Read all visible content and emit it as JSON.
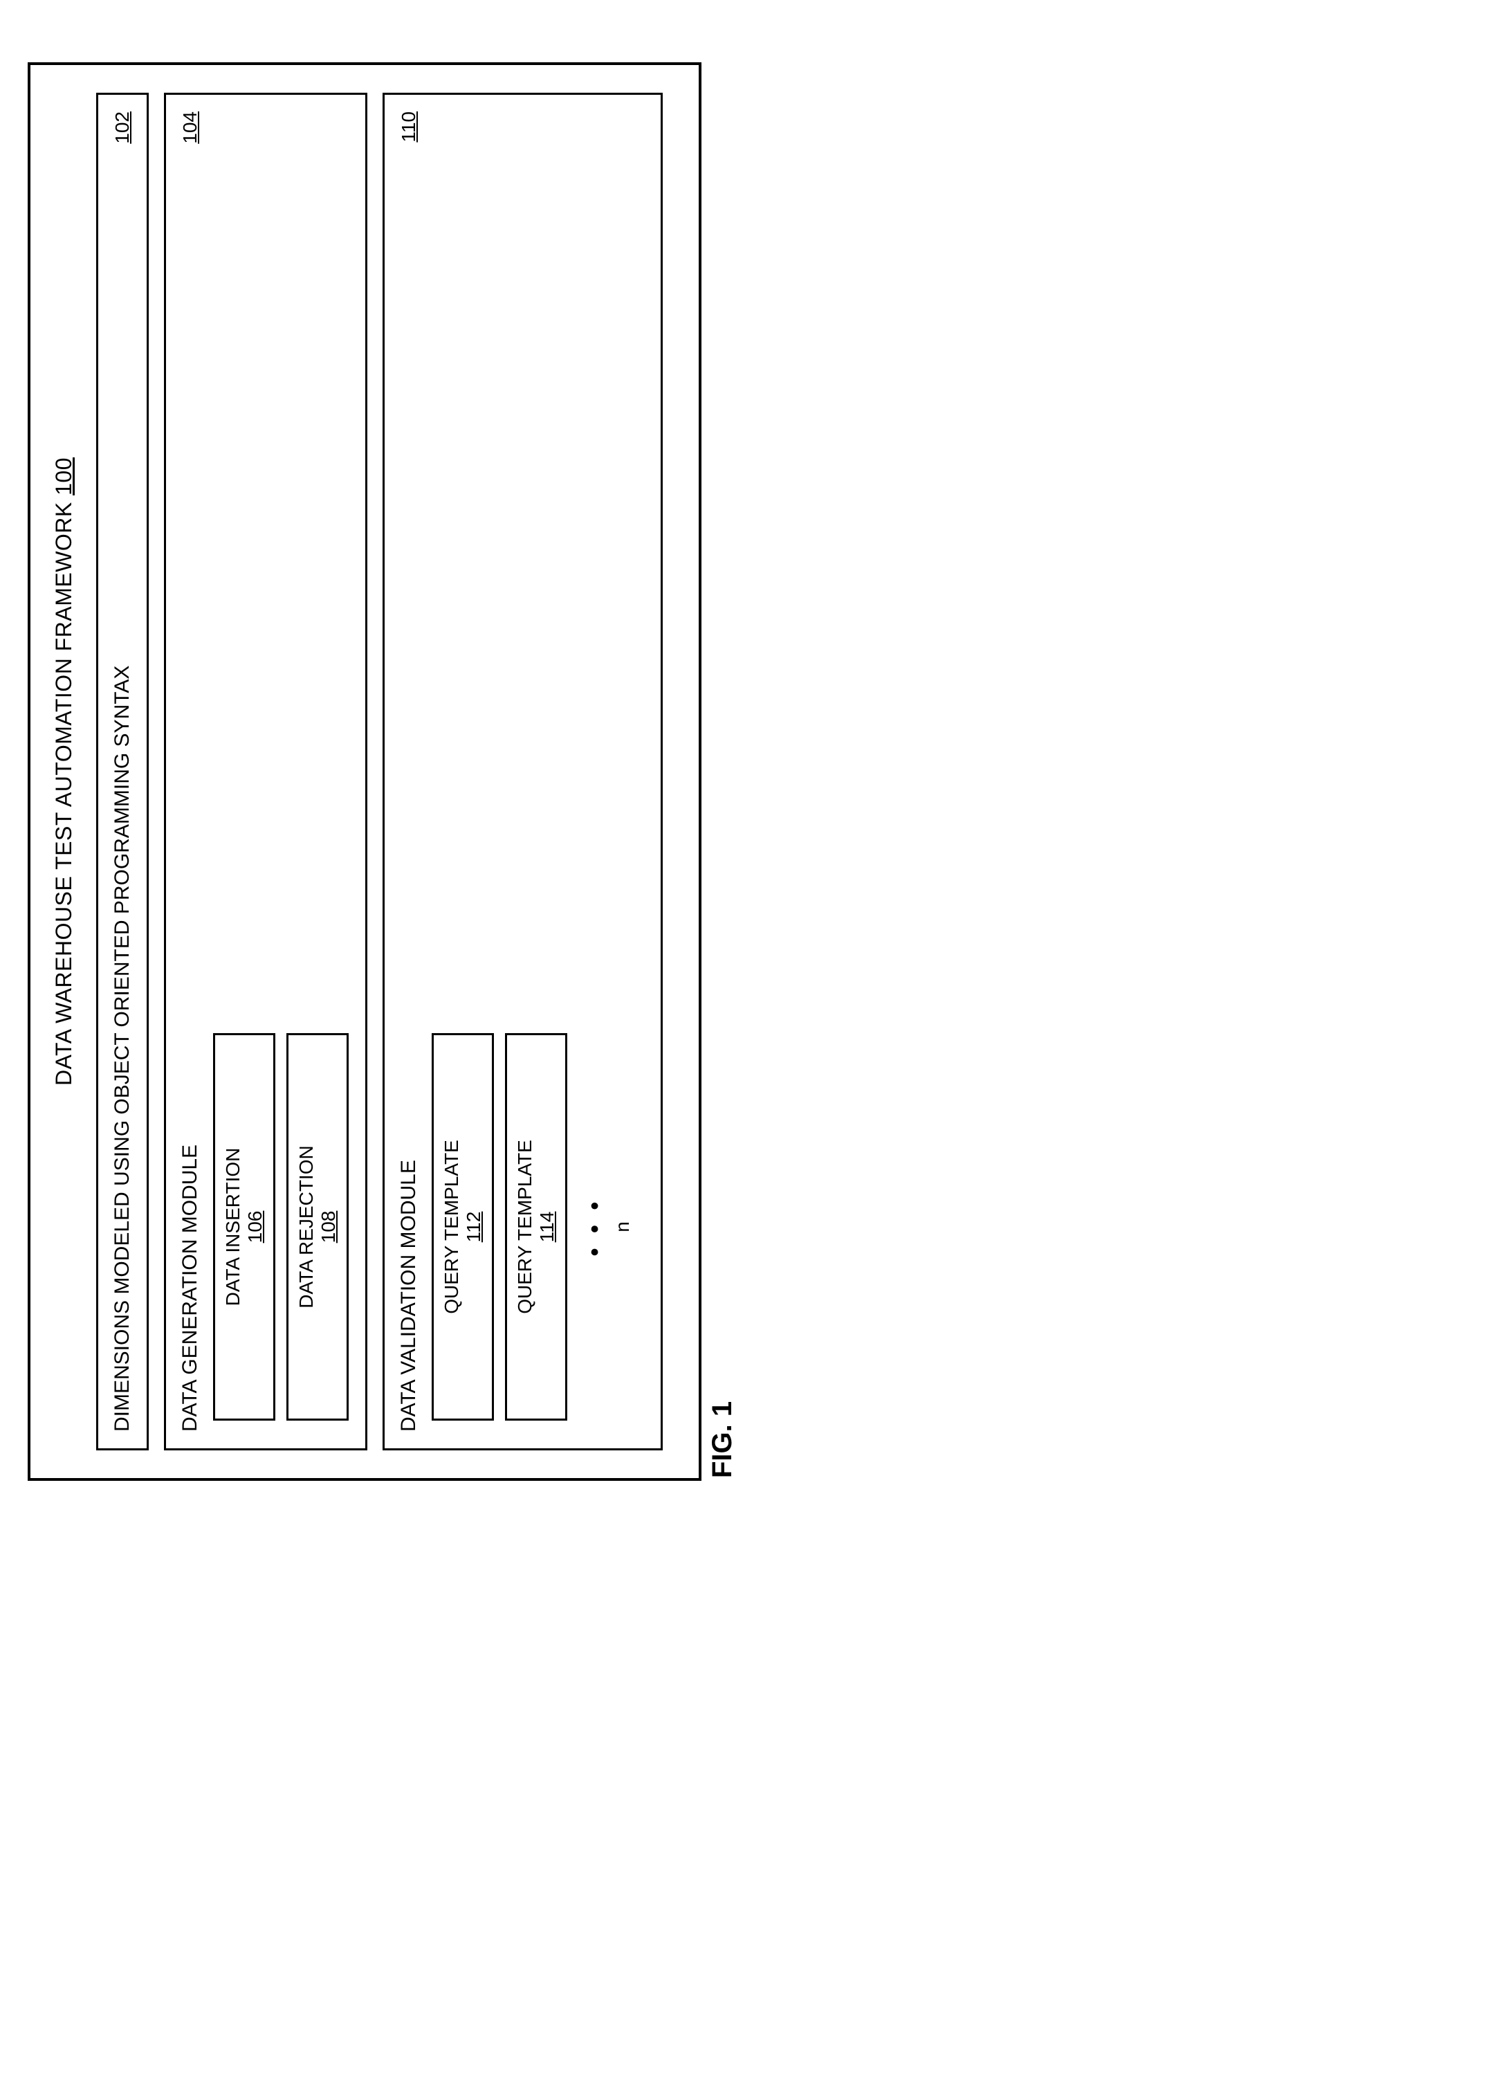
{
  "diagram": {
    "type": "block-diagram",
    "border_color": "#000000",
    "background_color": "#ffffff",
    "font_family": "Arial",
    "title": {
      "text": "DATA WAREHOUSE TEST AUTOMATION FRAMEWORK",
      "ref": "100",
      "fontsize": 32
    },
    "dimensions_box": {
      "text": "DIMENSIONS MODELED USING OBJECT ORIENTED PROGRAMMING SYNTAX",
      "ref": "102",
      "fontsize": 30
    },
    "generation_module": {
      "title": "DATA GENERATION MODULE",
      "ref": "104",
      "sub_boxes": [
        {
          "label": "DATA INSERTION",
          "ref": "106"
        },
        {
          "label": "DATA REJECTION",
          "ref": "108"
        }
      ]
    },
    "validation_module": {
      "title": "DATA VALIDATION MODULE",
      "ref": "110",
      "sub_boxes": [
        {
          "label": "QUERY TEMPLATE",
          "ref": "112"
        },
        {
          "label": "QUERY TEMPLATE",
          "ref": "114"
        }
      ],
      "ellipsis": "…",
      "continuation": "n"
    },
    "figure_label": "FIG. 1"
  }
}
